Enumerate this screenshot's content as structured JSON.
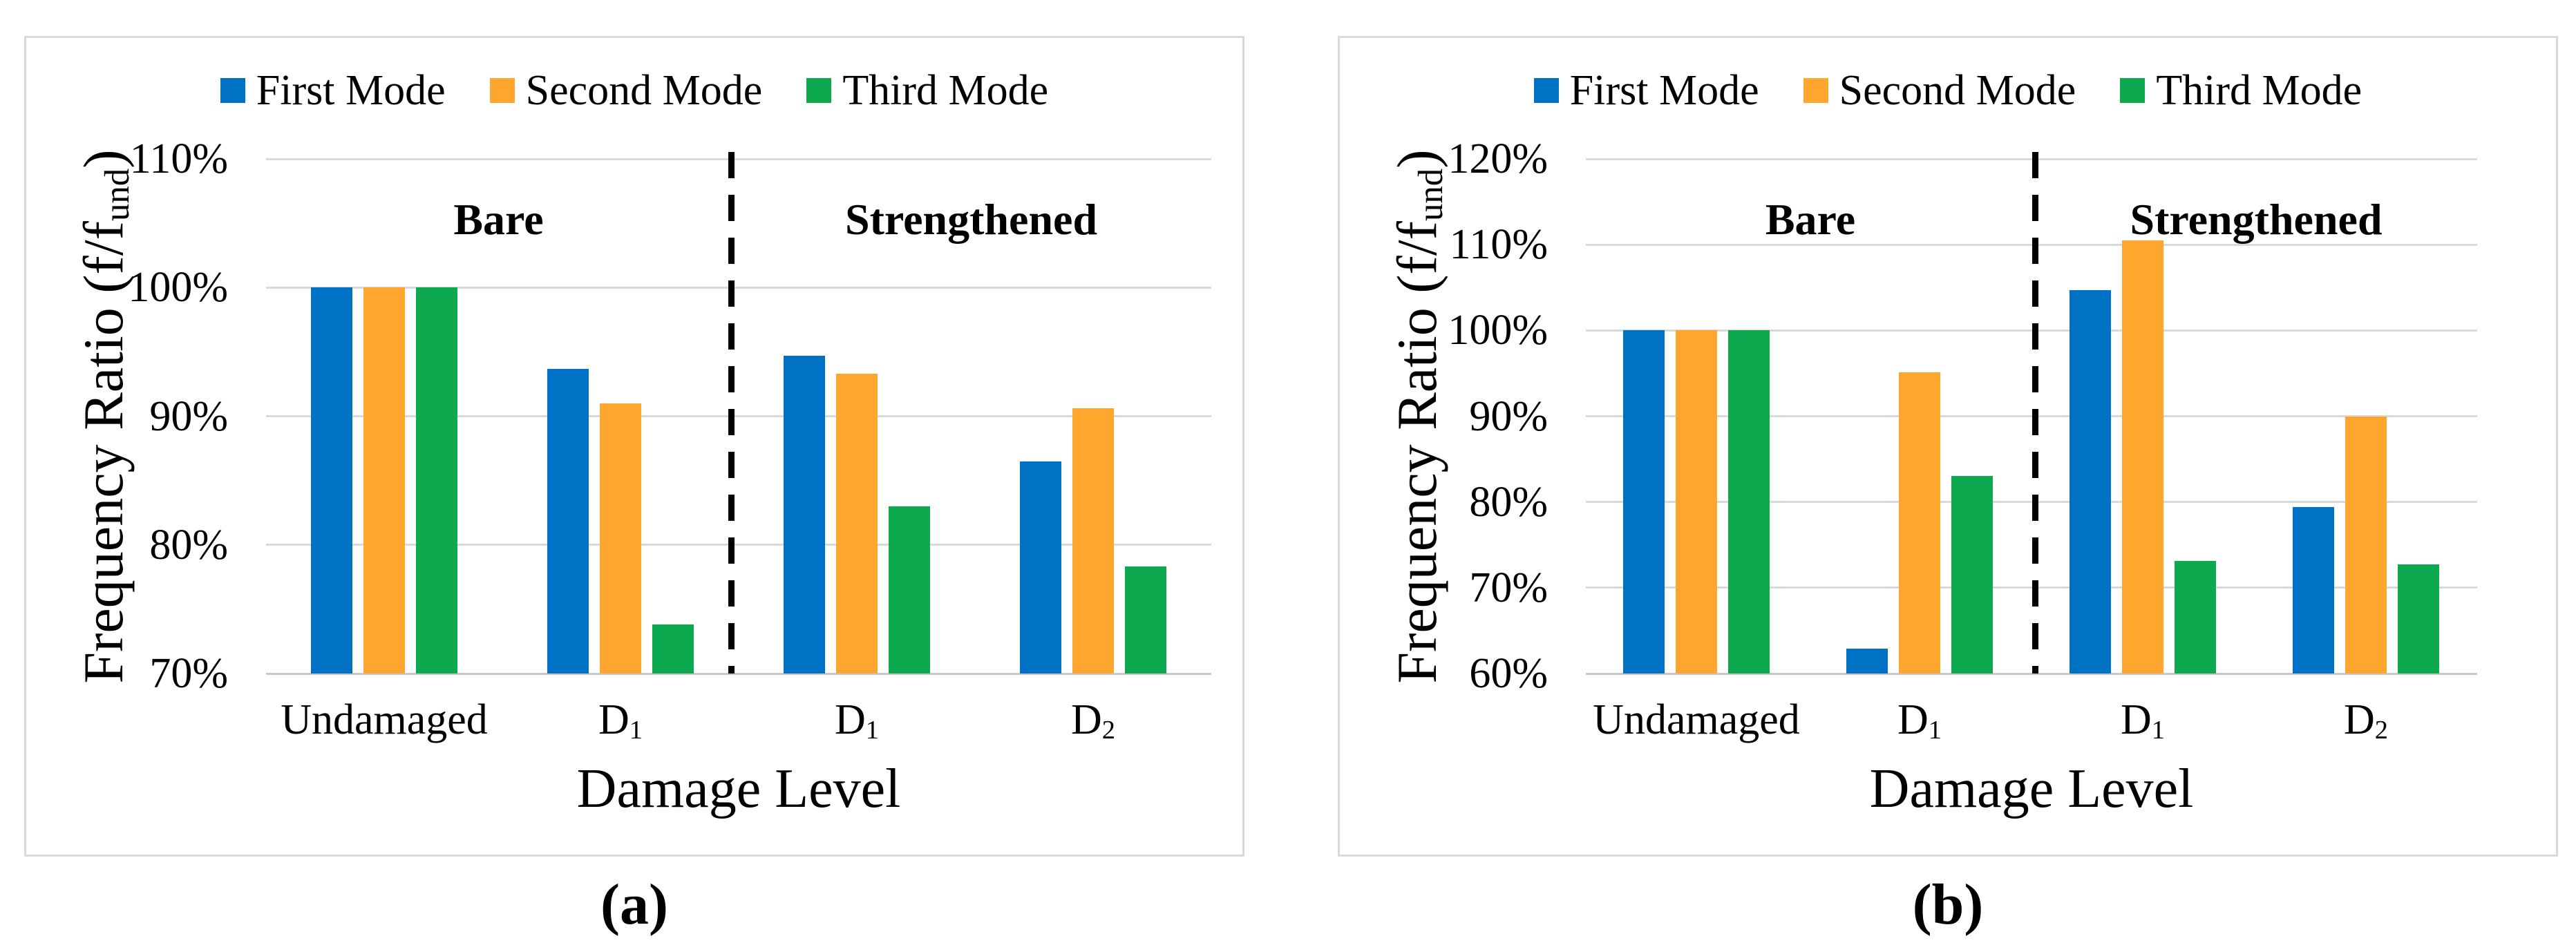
{
  "figure": {
    "background": "#ffffff",
    "gridline_color": "#D9D9D9",
    "panel_border_color": "#D9D9D9",
    "divider_color": "#000000"
  },
  "chart_data": [
    {
      "caption": "(a)",
      "type": "bar",
      "title": "",
      "categories": [
        {
          "label": "Undamaged",
          "sub": ""
        },
        {
          "label": "D",
          "sub": "1"
        },
        {
          "label": "D",
          "sub": "1"
        },
        {
          "label": "D",
          "sub": "2"
        }
      ],
      "series": [
        {
          "name": "First Mode",
          "color": "#0072C6",
          "values": [
            100.0,
            93.7,
            94.7,
            86.5
          ]
        },
        {
          "name": "Second Mode",
          "color": "#FFA62F",
          "values": [
            100.0,
            91.0,
            93.3,
            90.6
          ]
        },
        {
          "name": "Third Mode",
          "color": "#0CA94F",
          "values": [
            100.0,
            73.8,
            83.0,
            78.3
          ]
        }
      ],
      "xlabel": "Damage Level",
      "ylabel": {
        "text": "Frequency Ratio (f/f",
        "sub": "und",
        "close": ")"
      },
      "ylim": [
        70,
        110
      ],
      "ytick_step": 10,
      "ytick_labels": [
        "70%",
        "80%",
        "90%",
        "100%",
        "110%"
      ],
      "sections": [
        {
          "label": "Bare",
          "categories": [
            "Undamaged",
            "D1"
          ]
        },
        {
          "label": "Strengthened",
          "categories": [
            "D1",
            "D2"
          ]
        }
      ],
      "grid": true,
      "legend_position": "top"
    },
    {
      "caption": "(b)",
      "type": "bar",
      "title": "",
      "categories": [
        {
          "label": "Undamaged",
          "sub": ""
        },
        {
          "label": "D",
          "sub": "1"
        },
        {
          "label": "D",
          "sub": "1"
        },
        {
          "label": "D",
          "sub": "2"
        }
      ],
      "series": [
        {
          "name": "First Mode",
          "color": "#0072C6",
          "values": [
            100.0,
            62.9,
            104.7,
            79.4
          ]
        },
        {
          "name": "Second Mode",
          "color": "#FFA62F",
          "values": [
            100.0,
            95.1,
            110.5,
            90.0
          ]
        },
        {
          "name": "Third Mode",
          "color": "#0CA94F",
          "values": [
            100.0,
            83.0,
            73.1,
            72.7
          ]
        }
      ],
      "xlabel": "Damage Level",
      "ylabel": {
        "text": "Frequency Ratio (f/f",
        "sub": "und",
        "close": ")"
      },
      "ylim": [
        60,
        120
      ],
      "ytick_step": 10,
      "ytick_labels": [
        "60%",
        "70%",
        "80%",
        "90%",
        "100%",
        "110%",
        "120%"
      ],
      "sections": [
        {
          "label": "Bare",
          "categories": [
            "Undamaged",
            "D1"
          ]
        },
        {
          "label": "Strengthened",
          "categories": [
            "D1",
            "D2"
          ]
        }
      ],
      "grid": true,
      "legend_position": "top"
    }
  ]
}
